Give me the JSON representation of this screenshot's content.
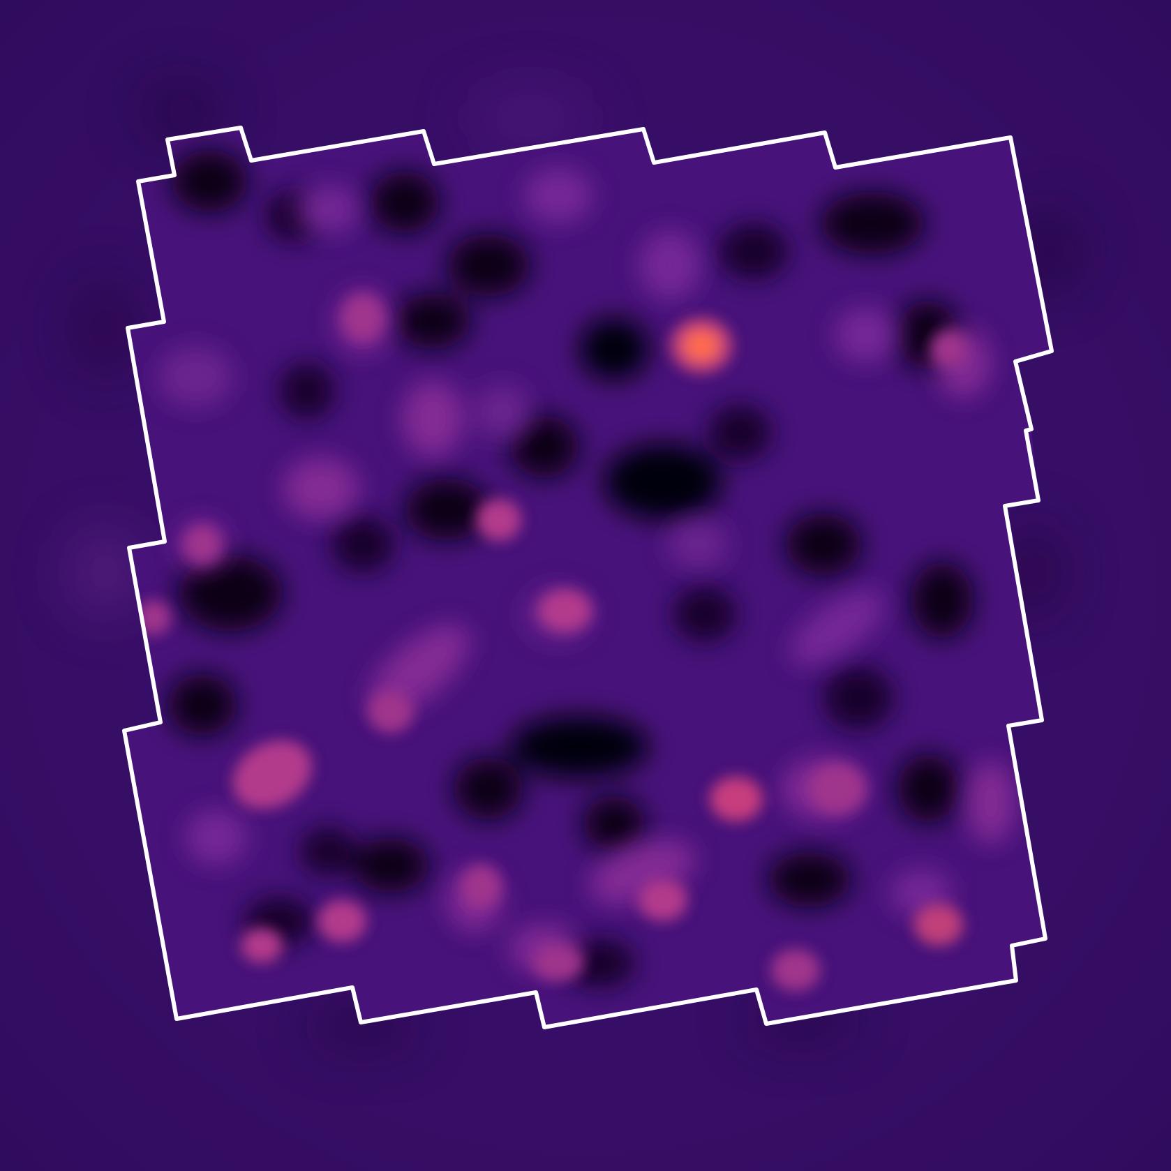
{
  "image": {
    "subject": "mass-map",
    "colors": {
      "background": "#3a0f6b",
      "void": "#0a0418",
      "mid": "#5b1a8a",
      "bright": "#b33a8c",
      "peak": "#ff6a4d",
      "outline": "#ffffff"
    }
  }
}
